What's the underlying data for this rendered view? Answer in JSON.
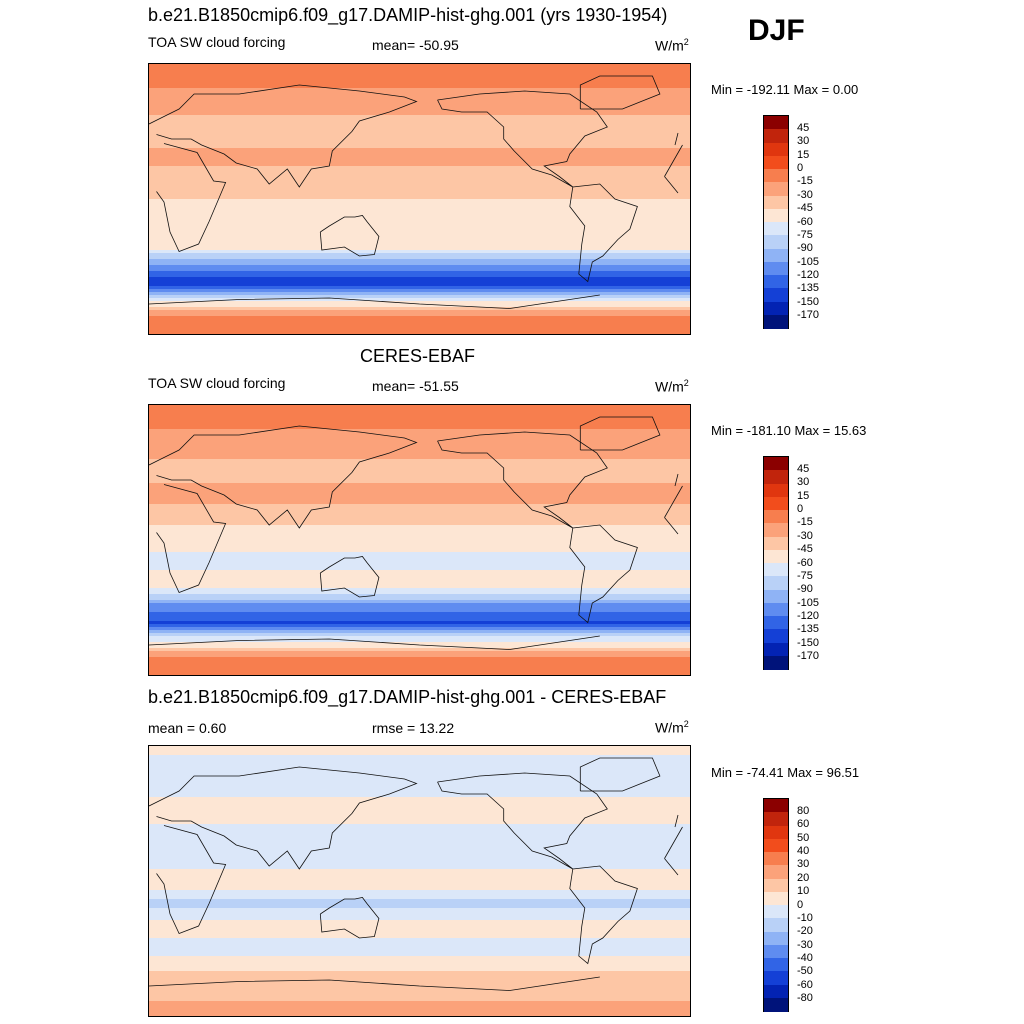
{
  "season": "DJF",
  "panels": [
    {
      "title": "b.e21.B1850cmip6.f09_g17.DAMIP-hist-ghg.001 (yrs 1930-1954)",
      "left_label": "TOA SW cloud forcing",
      "center_label": "mean= -50.95",
      "units": "W/m",
      "units_sup": "2",
      "minmax": "Min = -192.11 Max =    0.00"
    },
    {
      "title": "CERES-EBAF",
      "left_label": "TOA SW cloud forcing",
      "center_label": "mean= -51.55",
      "units": "W/m",
      "units_sup": "2",
      "minmax": "Min = -181.10 Max =  15.63"
    },
    {
      "title": "b.e21.B1850cmip6.f09_g17.DAMIP-hist-ghg.001 - CERES-EBAF",
      "left_label": "mean =   0.60",
      "center_label": "rmse =  13.22",
      "units": "W/m",
      "units_sup": "2",
      "minmax": "Min = -74.41 Max =  96.51"
    }
  ],
  "chart_data": [
    {
      "type": "heatmap",
      "title": "b.e21.B1850cmip6.f09_g17.DAMIP-hist-ghg.001 (yrs 1930-1954)",
      "field": "TOA SW cloud forcing",
      "season": "DJF",
      "mean": -50.95,
      "min": -192.11,
      "max": 0.0,
      "units": "W/m2",
      "colorbar_levels": [
        "45",
        "30",
        "15",
        "0",
        "-15",
        "-30",
        "-45",
        "-60",
        "-75",
        "-90",
        "-105",
        "-120",
        "-135",
        "-150",
        "-170"
      ],
      "colorbar_colors": [
        "#8b0000",
        "#c1240c",
        "#e0360f",
        "#f24d1c",
        "#f77e4e",
        "#fba27a",
        "#fdc6a5",
        "#fde6d4",
        "#dbe7f9",
        "#b9d1f7",
        "#8fb3f5",
        "#5f8cf0",
        "#3164e6",
        "#1440d6",
        "#0323b3",
        "#00137a"
      ],
      "zonal_profile_lat_deg": [
        85,
        65,
        45,
        30,
        15,
        0,
        -15,
        -30,
        -45,
        -55,
        -65,
        -80
      ],
      "zonal_profile_value": [
        -10,
        -20,
        -45,
        -25,
        -35,
        -45,
        -60,
        -45,
        -110,
        -150,
        -80,
        -5
      ]
    },
    {
      "type": "heatmap",
      "title": "CERES-EBAF",
      "field": "TOA SW cloud forcing",
      "season": "DJF",
      "mean": -51.55,
      "min": -181.1,
      "max": 15.63,
      "units": "W/m2",
      "colorbar_levels": [
        "45",
        "30",
        "15",
        "0",
        "-15",
        "-30",
        "-45",
        "-60",
        "-75",
        "-90",
        "-105",
        "-120",
        "-135",
        "-150",
        "-170"
      ],
      "colorbar_colors": [
        "#8b0000",
        "#c1240c",
        "#e0360f",
        "#f24d1c",
        "#f77e4e",
        "#fba27a",
        "#fdc6a5",
        "#fde6d4",
        "#dbe7f9",
        "#b9d1f7",
        "#8fb3f5",
        "#5f8cf0",
        "#3164e6",
        "#1440d6",
        "#0323b3",
        "#00137a"
      ],
      "zonal_profile_lat_deg": [
        85,
        65,
        45,
        30,
        15,
        0,
        -15,
        -30,
        -45,
        -55,
        -65,
        -80
      ],
      "zonal_profile_value": [
        -5,
        -25,
        -35,
        -25,
        -40,
        -55,
        -65,
        -50,
        -115,
        -140,
        -70,
        -10
      ]
    },
    {
      "type": "heatmap",
      "title": "b.e21.B1850cmip6.f09_g17.DAMIP-hist-ghg.001 - CERES-EBAF",
      "season": "DJF",
      "mean": 0.6,
      "rmse": 13.22,
      "min": -74.41,
      "max": 96.51,
      "units": "W/m2",
      "colorbar_levels": [
        "80",
        "60",
        "50",
        "40",
        "30",
        "20",
        "10",
        "0",
        "-10",
        "-20",
        "-30",
        "-40",
        "-50",
        "-60",
        "-80"
      ],
      "colorbar_colors": [
        "#8b0000",
        "#c1240c",
        "#e0360f",
        "#f24d1c",
        "#f77e4e",
        "#fba27a",
        "#fdc6a5",
        "#fde6d4",
        "#dbe7f9",
        "#b9d1f7",
        "#8fb3f5",
        "#5f8cf0",
        "#3164e6",
        "#1440d6",
        "#0323b3",
        "#00137a"
      ],
      "zonal_profile_lat_deg": [
        85,
        65,
        45,
        30,
        15,
        0,
        -15,
        -30,
        -45,
        -55,
        -65,
        -80
      ],
      "zonal_profile_value": [
        0,
        -5,
        5,
        -5,
        -10,
        10,
        -15,
        5,
        -5,
        5,
        15,
        20
      ]
    }
  ]
}
